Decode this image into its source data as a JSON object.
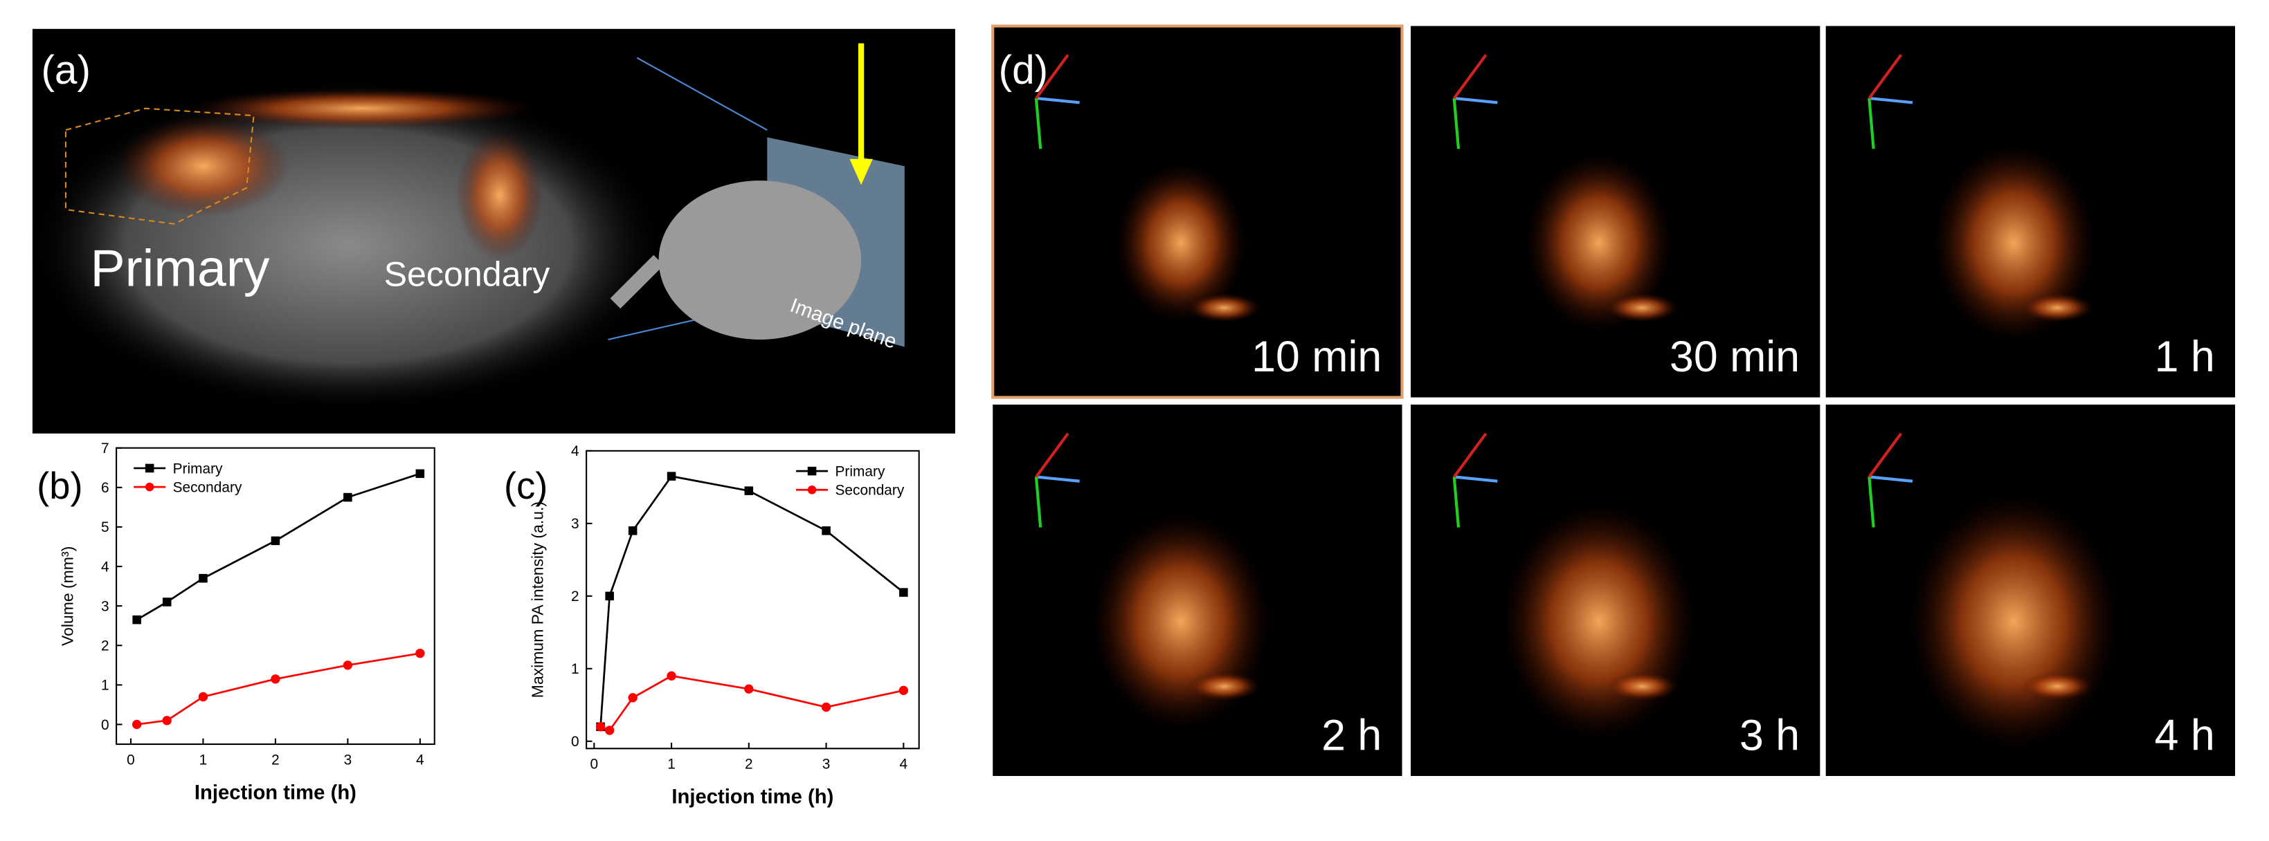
{
  "panels": {
    "a": {
      "label": "(a)",
      "primary": "Primary",
      "secondary": "Secondary",
      "plane": "Image plane"
    },
    "d": {
      "label": "(d)",
      "frames": [
        "10 min",
        "30 min",
        "1 h",
        "2 h",
        "3 h",
        "4 h"
      ]
    }
  },
  "chart_data": [
    {
      "type": "line",
      "label": "(b)",
      "xlabel": "Injection time (h)",
      "ylabel": "Volume (mm³)",
      "legend": "top-left",
      "x": [
        0.083,
        0.5,
        1,
        2,
        3,
        4
      ],
      "xlim": [
        -0.2,
        4.2
      ],
      "xticks": [
        0,
        1,
        2,
        3,
        4
      ],
      "ylim": [
        -0.5,
        7
      ],
      "yticks": [
        0,
        1,
        2,
        3,
        4,
        5,
        6,
        7
      ],
      "series": [
        {
          "name": "Primary",
          "color": "#000000",
          "marker": "square",
          "values": [
            2.65,
            3.1,
            3.7,
            4.65,
            5.75,
            6.35
          ]
        },
        {
          "name": "Secondary",
          "color": "#ff0000",
          "marker": "circle",
          "values": [
            0,
            0.1,
            0.7,
            1.15,
            1.5,
            1.8
          ]
        }
      ]
    },
    {
      "type": "line",
      "label": "(c)",
      "xlabel": "Injection time (h)",
      "ylabel": "Maximum PA intensity (a.u.)",
      "legend": "top-right",
      "x": [
        0.083,
        0.2,
        0.5,
        1,
        2,
        3,
        4
      ],
      "xlim": [
        -0.1,
        4.2
      ],
      "xticks": [
        0,
        1,
        2,
        3,
        4
      ],
      "ylim": [
        -0.1,
        4
      ],
      "yticks": [
        0,
        1,
        2,
        3,
        4
      ],
      "series": [
        {
          "name": "Primary",
          "color": "#000000",
          "marker": "square",
          "values": [
            0.2,
            2.0,
            2.9,
            3.65,
            3.45,
            2.9,
            2.05
          ]
        },
        {
          "name": "Secondary",
          "color": "#ff0000",
          "marker": "circle",
          "values": [
            0.2,
            0.15,
            0.6,
            0.9,
            0.72,
            0.47,
            0.7
          ]
        }
      ]
    }
  ]
}
